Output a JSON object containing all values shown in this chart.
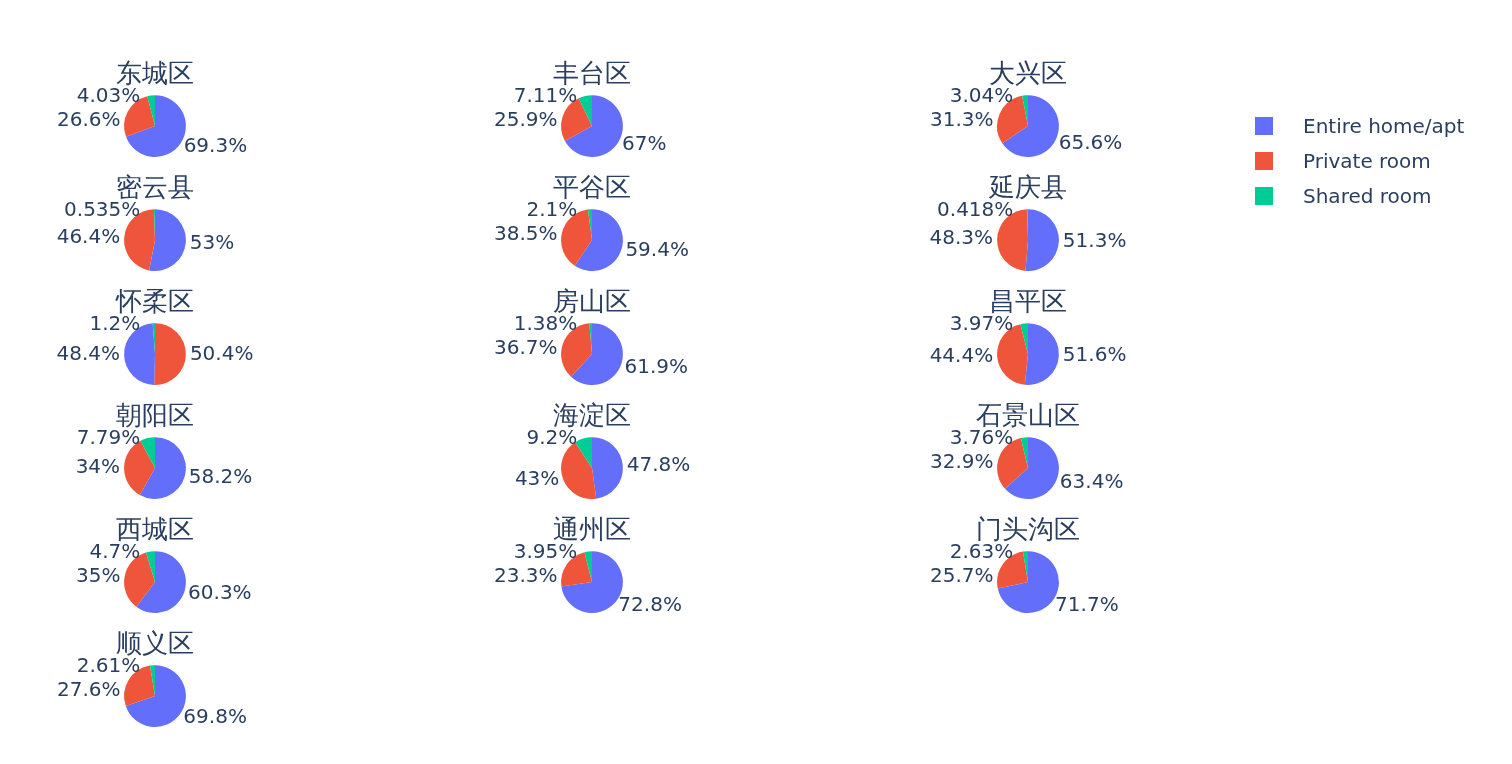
{
  "chart_data": [
    {
      "type": "pie",
      "title": "东城区",
      "legend": "right",
      "categories": [
        "Entire home/apt",
        "Private room",
        "Shared room"
      ],
      "values": [
        69.3,
        26.6,
        4.03
      ],
      "colors": [
        "#636efa",
        "#ef553b",
        "#00cc96"
      ],
      "value_labels": [
        "69.3%",
        "26.6%",
        "4.03%"
      ]
    },
    {
      "type": "pie",
      "title": "丰台区",
      "categories": [
        null,
        null,
        null
      ],
      "values": [
        67,
        25.9,
        7.11
      ],
      "colors": [
        "#636efa",
        "#ef553b",
        "#00cc96"
      ],
      "value_labels": [
        "67%",
        "25.9%",
        "7.11%"
      ]
    },
    {
      "type": "pie",
      "title": "大兴区",
      "categories": [
        null,
        null,
        null
      ],
      "values": [
        65.6,
        31.3,
        3.04
      ],
      "colors": [
        "#636efa",
        "#ef553b",
        "#00cc96"
      ],
      "value_labels": [
        "65.6%",
        "31.3%",
        "3.04%"
      ]
    },
    {
      "type": "pie",
      "title": "密云县",
      "categories": [
        null,
        null,
        null
      ],
      "values": [
        53,
        46.4,
        0.535
      ],
      "colors": [
        "#636efa",
        "#ef553b",
        "#00cc96"
      ],
      "value_labels": [
        "53%",
        "46.4%",
        "0.535%"
      ]
    },
    {
      "type": "pie",
      "title": "平谷区",
      "categories": [
        null,
        null,
        null
      ],
      "values": [
        59.4,
        38.5,
        2.1
      ],
      "colors": [
        "#636efa",
        "#ef553b",
        "#00cc96"
      ],
      "value_labels": [
        "59.4%",
        "38.5%",
        "2.1%"
      ]
    },
    {
      "type": "pie",
      "title": "延庆县",
      "categories": [
        null,
        null,
        null
      ],
      "values": [
        51.3,
        48.3,
        0.418
      ],
      "colors": [
        "#636efa",
        "#ef553b",
        "#00cc96"
      ],
      "value_labels": [
        "51.3%",
        "48.3%",
        "0.418%"
      ]
    },
    {
      "type": "pie",
      "title": "怀柔区",
      "categories": [
        null,
        null,
        null
      ],
      "values": [
        50.4,
        48.4,
        1.2
      ],
      "colors": [
        "#ef553b",
        "#636efa",
        "#00cc96"
      ],
      "value_labels": [
        "50.4%",
        "48.4%",
        "1.2%"
      ]
    },
    {
      "type": "pie",
      "title": "房山区",
      "categories": [
        null,
        null,
        null
      ],
      "values": [
        61.9,
        36.7,
        1.38
      ],
      "colors": [
        "#636efa",
        "#ef553b",
        "#00cc96"
      ],
      "value_labels": [
        "61.9%",
        "36.7%",
        "1.38%"
      ]
    },
    {
      "type": "pie",
      "title": "昌平区",
      "categories": [
        null,
        null,
        null
      ],
      "values": [
        51.6,
        44.4,
        3.97
      ],
      "colors": [
        "#636efa",
        "#ef553b",
        "#00cc96"
      ],
      "value_labels": [
        "51.6%",
        "44.4%",
        "3.97%"
      ]
    },
    {
      "type": "pie",
      "title": "朝阳区",
      "categories": [
        null,
        null,
        null
      ],
      "values": [
        58.2,
        34,
        7.79
      ],
      "colors": [
        "#636efa",
        "#ef553b",
        "#00cc96"
      ],
      "value_labels": [
        "58.2%",
        "34%",
        "7.79%"
      ]
    },
    {
      "type": "pie",
      "title": "海淀区",
      "categories": [
        null,
        null,
        null
      ],
      "values": [
        47.8,
        43,
        9.2
      ],
      "colors": [
        "#636efa",
        "#ef553b",
        "#00cc96"
      ],
      "value_labels": [
        "47.8%",
        "43%",
        "9.2%"
      ]
    },
    {
      "type": "pie",
      "title": "石景山区",
      "categories": [
        null,
        null,
        null
      ],
      "values": [
        63.4,
        32.9,
        3.76
      ],
      "colors": [
        "#636efa",
        "#ef553b",
        "#00cc96"
      ],
      "value_labels": [
        "63.4%",
        "32.9%",
        "3.76%"
      ]
    },
    {
      "type": "pie",
      "title": "西城区",
      "categories": [
        null,
        null,
        null
      ],
      "values": [
        60.3,
        35,
        4.7
      ],
      "colors": [
        "#636efa",
        "#ef553b",
        "#00cc96"
      ],
      "value_labels": [
        "60.3%",
        "35%",
        "4.7%"
      ]
    },
    {
      "type": "pie",
      "title": "通州区",
      "categories": [
        null,
        null,
        null
      ],
      "values": [
        72.8,
        23.3,
        3.95
      ],
      "colors": [
        "#636efa",
        "#ef553b",
        "#00cc96"
      ],
      "value_labels": [
        "72.8%",
        "23.3%",
        "3.95%"
      ]
    },
    {
      "type": "pie",
      "title": "门头沟区",
      "categories": [
        null,
        null,
        null
      ],
      "values": [
        71.7,
        25.7,
        2.63
      ],
      "colors": [
        "#636efa",
        "#ef553b",
        "#00cc96"
      ],
      "value_labels": [
        "71.7%",
        "25.7%",
        "2.63%"
      ]
    },
    {
      "type": "pie",
      "title": "顺义区",
      "categories": [
        null,
        null,
        null
      ],
      "values": [
        69.8,
        27.6,
        2.61
      ],
      "colors": [
        "#636efa",
        "#ef553b",
        "#00cc96"
      ],
      "value_labels": [
        "69.8%",
        "27.6%",
        "2.61%"
      ]
    }
  ]
}
